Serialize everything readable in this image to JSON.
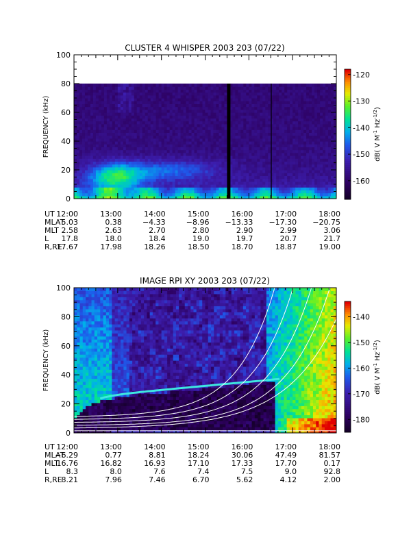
{
  "chart_data": [
    {
      "type": "heatmap",
      "title": "CLUSTER 4 WHISPER 2003 203 (07/22)",
      "ylabel": "FREQUENCY (kHz)",
      "ylim": [
        0,
        100
      ],
      "y_ticks": [
        "0",
        "20",
        "40",
        "60",
        "80",
        "100"
      ],
      "x_ticks": [
        "12:00",
        "13:00",
        "14:00",
        "15:00",
        "16:00",
        "17:00",
        "18:00"
      ],
      "data_top_khz": 80,
      "colorbar": {
        "label_main": "dB( V M",
        "label_sup1": "-1",
        "label_mid": " Hz",
        "label_sup2": "-1/2",
        "label_end": ")",
        "range": [
          -167,
          -118
        ],
        "ticks": [
          "-120",
          "-130",
          "-140",
          "-150",
          "-160"
        ],
        "tick_values": [
          -120,
          -130,
          -140,
          -150,
          -160
        ]
      },
      "orbit": {
        "labels": [
          "UT",
          "MLAT",
          "MLT",
          "L",
          "R,RE"
        ],
        "rows": [
          [
            "12:00",
            "13:00",
            "14:00",
            "15:00",
            "16:00",
            "17:00",
            "18:00"
          ],
          [
            "5.03",
            "0.38",
            "−4.33",
            "−8.96",
            "−13.33",
            "−17.30",
            "−20.75"
          ],
          [
            "2.58",
            "2.63",
            "2.70",
            "2.80",
            "2.90",
            "2.99",
            "3.06"
          ],
          [
            "17.8",
            "18.0",
            "18.4",
            "19.0",
            "19.7",
            "20.7",
            "21.7"
          ],
          [
            "17.67",
            "17.98",
            "18.26",
            "18.50",
            "18.70",
            "18.87",
            "19.00"
          ]
        ]
      }
    },
    {
      "type": "heatmap",
      "title": "IMAGE RPI XY 2003 203 (07/22)",
      "ylabel": "FREQUENCY (kHz)",
      "ylim": [
        0,
        100
      ],
      "y_ticks": [
        "0",
        "20",
        "40",
        "60",
        "80",
        "100"
      ],
      "x_ticks": [
        "12:00",
        "13:00",
        "14:00",
        "15:00",
        "16:00",
        "17:00",
        "18:00"
      ],
      "colorbar": {
        "label_main": "dB( V M",
        "label_sup1": "-1",
        "label_mid": " Hz",
        "label_sup2": "-1/2",
        "label_end": ")",
        "range": [
          -185,
          -134
        ],
        "ticks": [
          "-140",
          "-150",
          "-160",
          "-170",
          "-180"
        ],
        "tick_values": [
          -140,
          -150,
          -160,
          -170,
          -180
        ]
      },
      "orbit": {
        "labels": [
          "UT",
          "MLAT",
          "MLT",
          "L",
          "R,RE"
        ],
        "rows": [
          [
            "12:00",
            "13:00",
            "14:00",
            "15:00",
            "16:00",
            "17:00",
            "18:00"
          ],
          [
            "−6.29",
            "0.77",
            "8.81",
            "18.24",
            "30.06",
            "47.49",
            "81.57"
          ],
          [
            "16.76",
            "16.82",
            "16.93",
            "17.10",
            "17.33",
            "17.70",
            "0.17"
          ],
          [
            "8.3",
            "8.0",
            "7.6",
            "7.4",
            "7.5",
            "9.0",
            "92.8"
          ],
          [
            "8.21",
            "7.96",
            "7.46",
            "6.70",
            "5.62",
            "4.12",
            "2.00"
          ]
        ]
      }
    }
  ]
}
